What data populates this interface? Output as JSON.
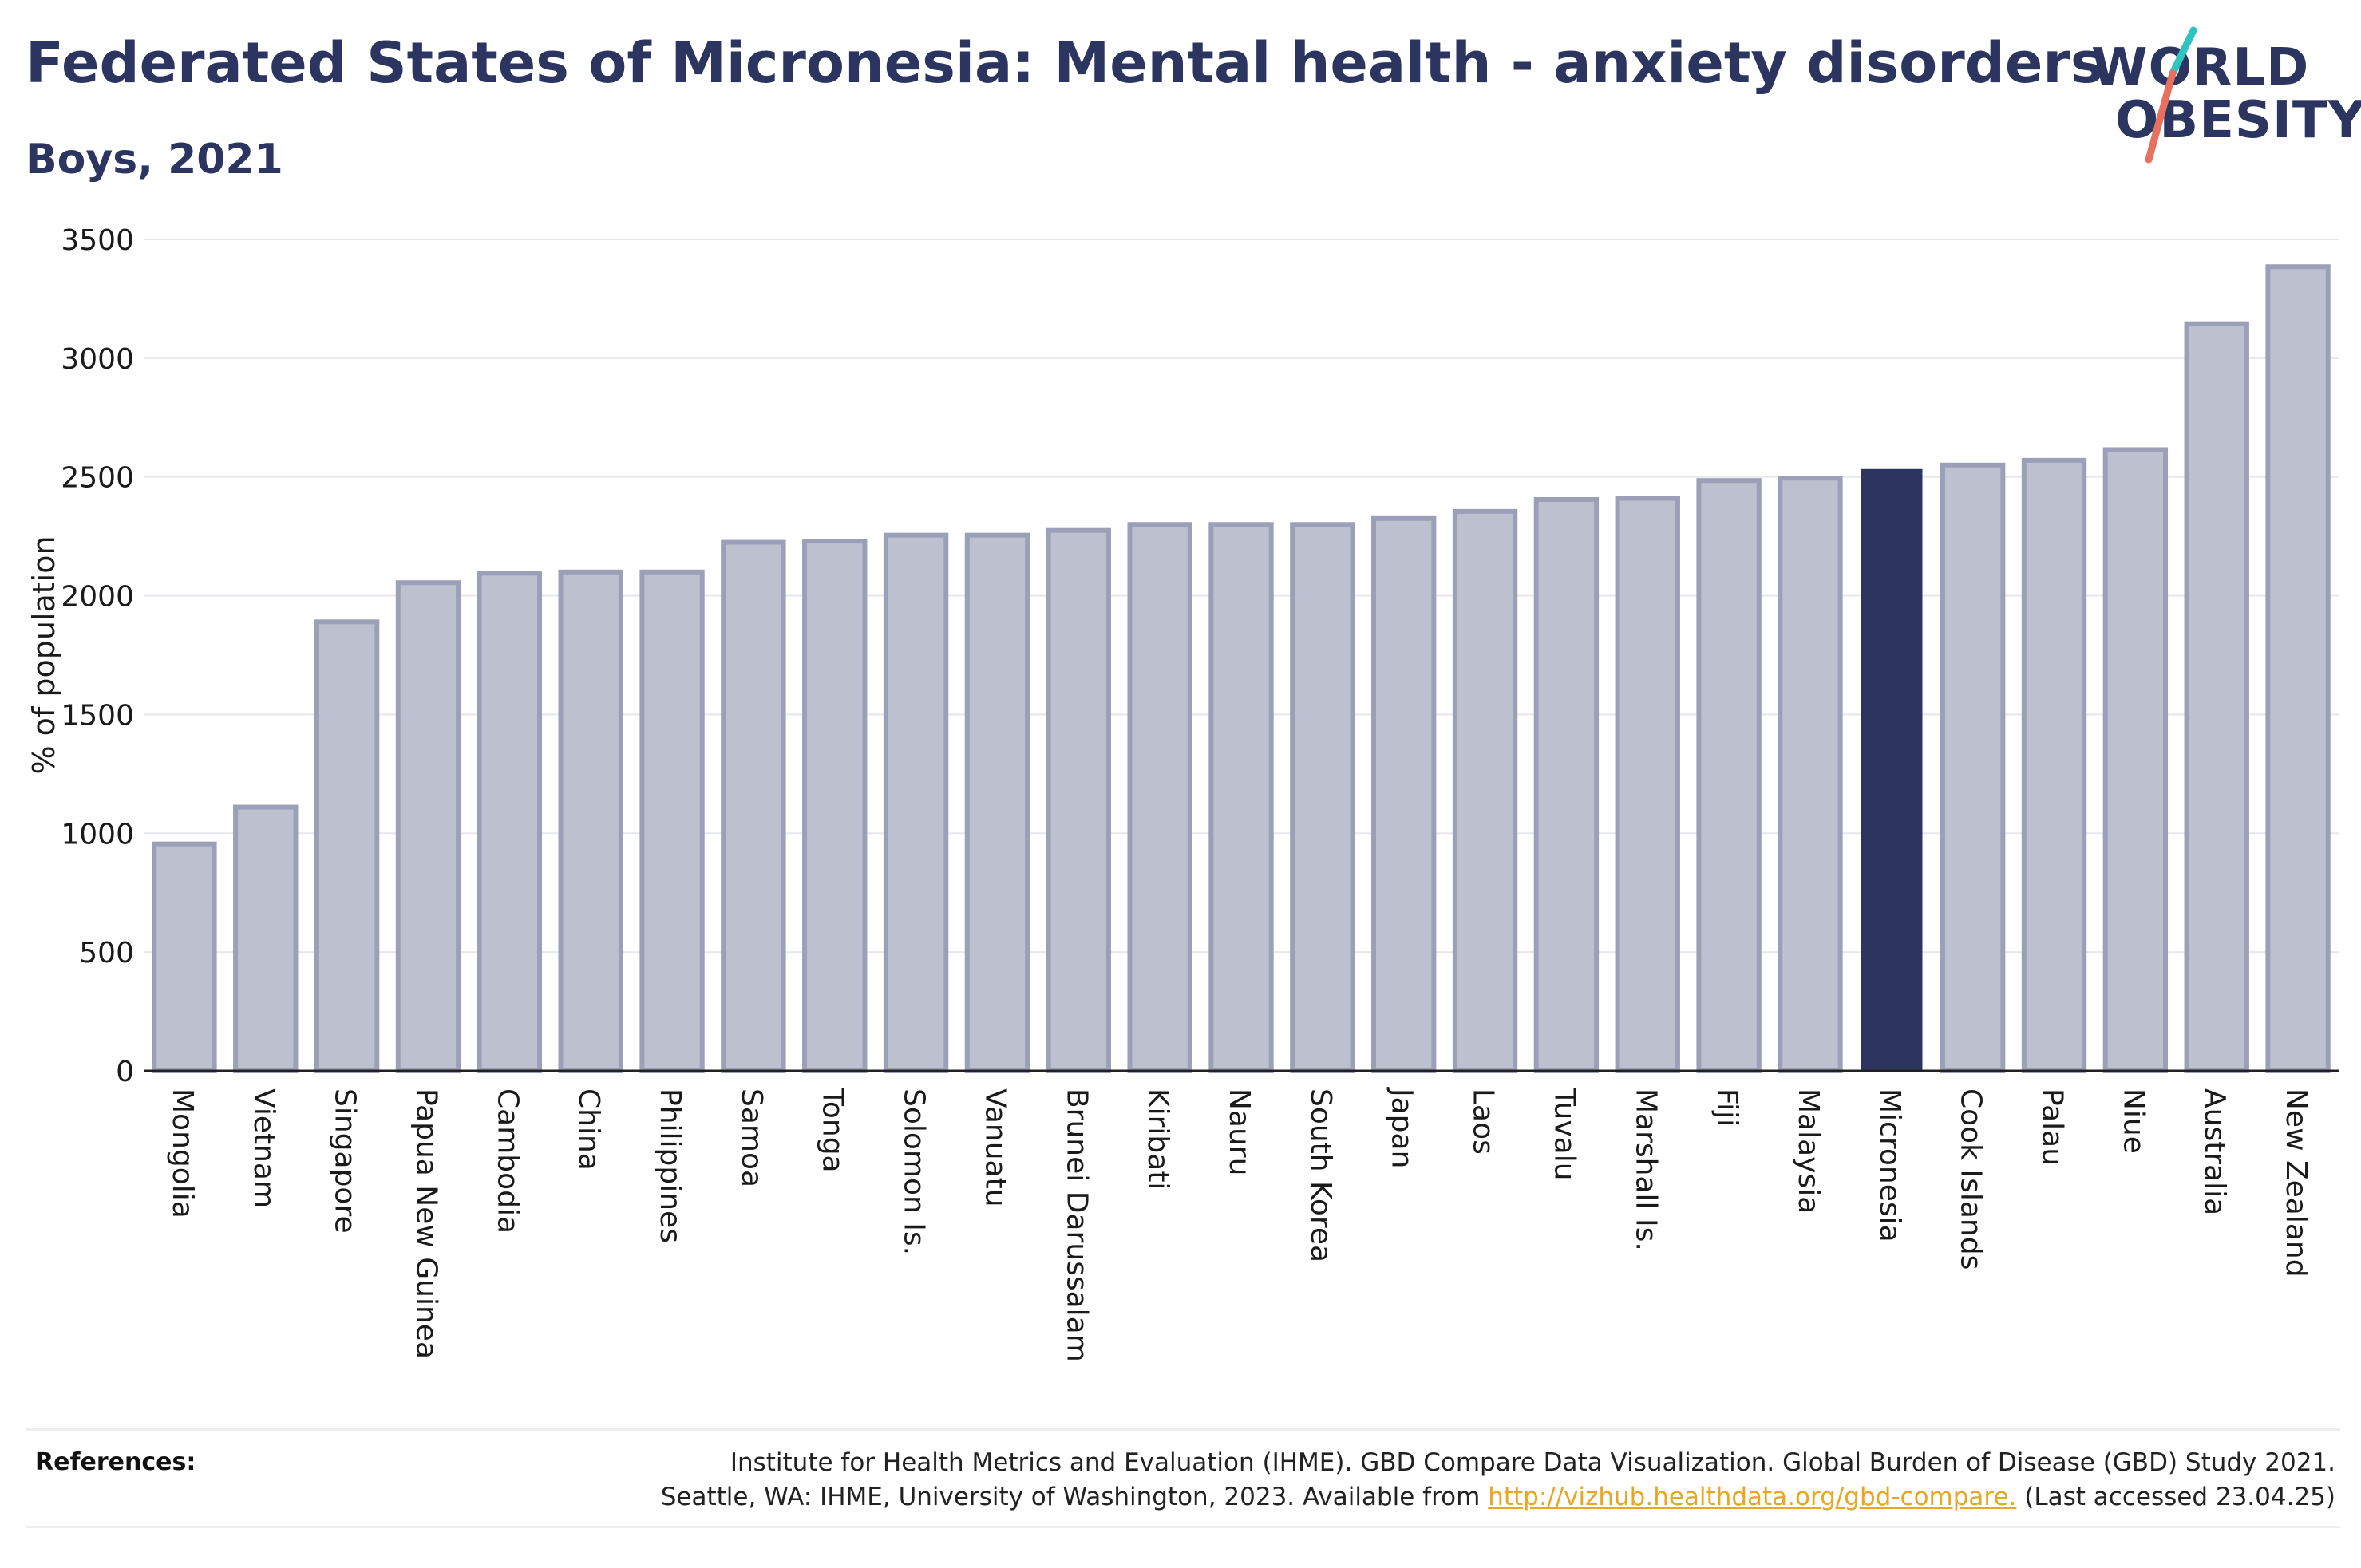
{
  "header": {
    "title": "Federated States of Micronesia: Mental health - anxiety disorders",
    "subtitle": "Boys, 2021"
  },
  "logo": {
    "line1": "WORLD",
    "line2": "OBESITY"
  },
  "colors": {
    "bar_fill": "#bdc1cf",
    "bar_edge": "#9ba0b8",
    "highlight": "#2b3560",
    "title": "#2b3560",
    "logo_teal": "#2ec4c0",
    "logo_coral": "#e8705f",
    "link": "#e8a623"
  },
  "chart_data": {
    "type": "bar",
    "ylabel": "% of population",
    "xlabel": "",
    "ylim": [
      0,
      3500
    ],
    "yticks": [
      0,
      500,
      1000,
      1500,
      2000,
      2500,
      3000,
      3500
    ],
    "grid": true,
    "highlight": "Micronesia",
    "categories": [
      "Mongolia",
      "Vietnam",
      "Singapore",
      "Papua New Guinea",
      "Cambodia",
      "China",
      "Philippines",
      "Samoa",
      "Tonga",
      "Solomon Is.",
      "Vanuatu",
      "Brunei Darussalam",
      "Kiribati",
      "Nauru",
      "South Korea",
      "Japan",
      "Laos",
      "Tuvalu",
      "Marshall Is.",
      "Fiji",
      "Malaysia",
      "Micronesia",
      "Cook Islands",
      "Palau",
      "Niue",
      "Australia",
      "New Zealand"
    ],
    "values": [
      955,
      1110,
      1890,
      2055,
      2095,
      2100,
      2100,
      2225,
      2230,
      2255,
      2255,
      2275,
      2300,
      2300,
      2300,
      2325,
      2355,
      2405,
      2410,
      2485,
      2495,
      2530,
      2550,
      2570,
      2615,
      3145,
      3385
    ]
  },
  "references": {
    "label": "References:",
    "line1": "Institute for Health Metrics and Evaluation (IHME). GBD Compare Data Visualization. Global Burden of Disease (GBD) Study 2021.",
    "line2_prefix": "Seattle, WA: IHME, University of Washington, 2023. Available from ",
    "link": "http://vizhub.healthdata.org/gbd-compare.",
    "line2_suffix": " (Last accessed 23.04.25)"
  }
}
